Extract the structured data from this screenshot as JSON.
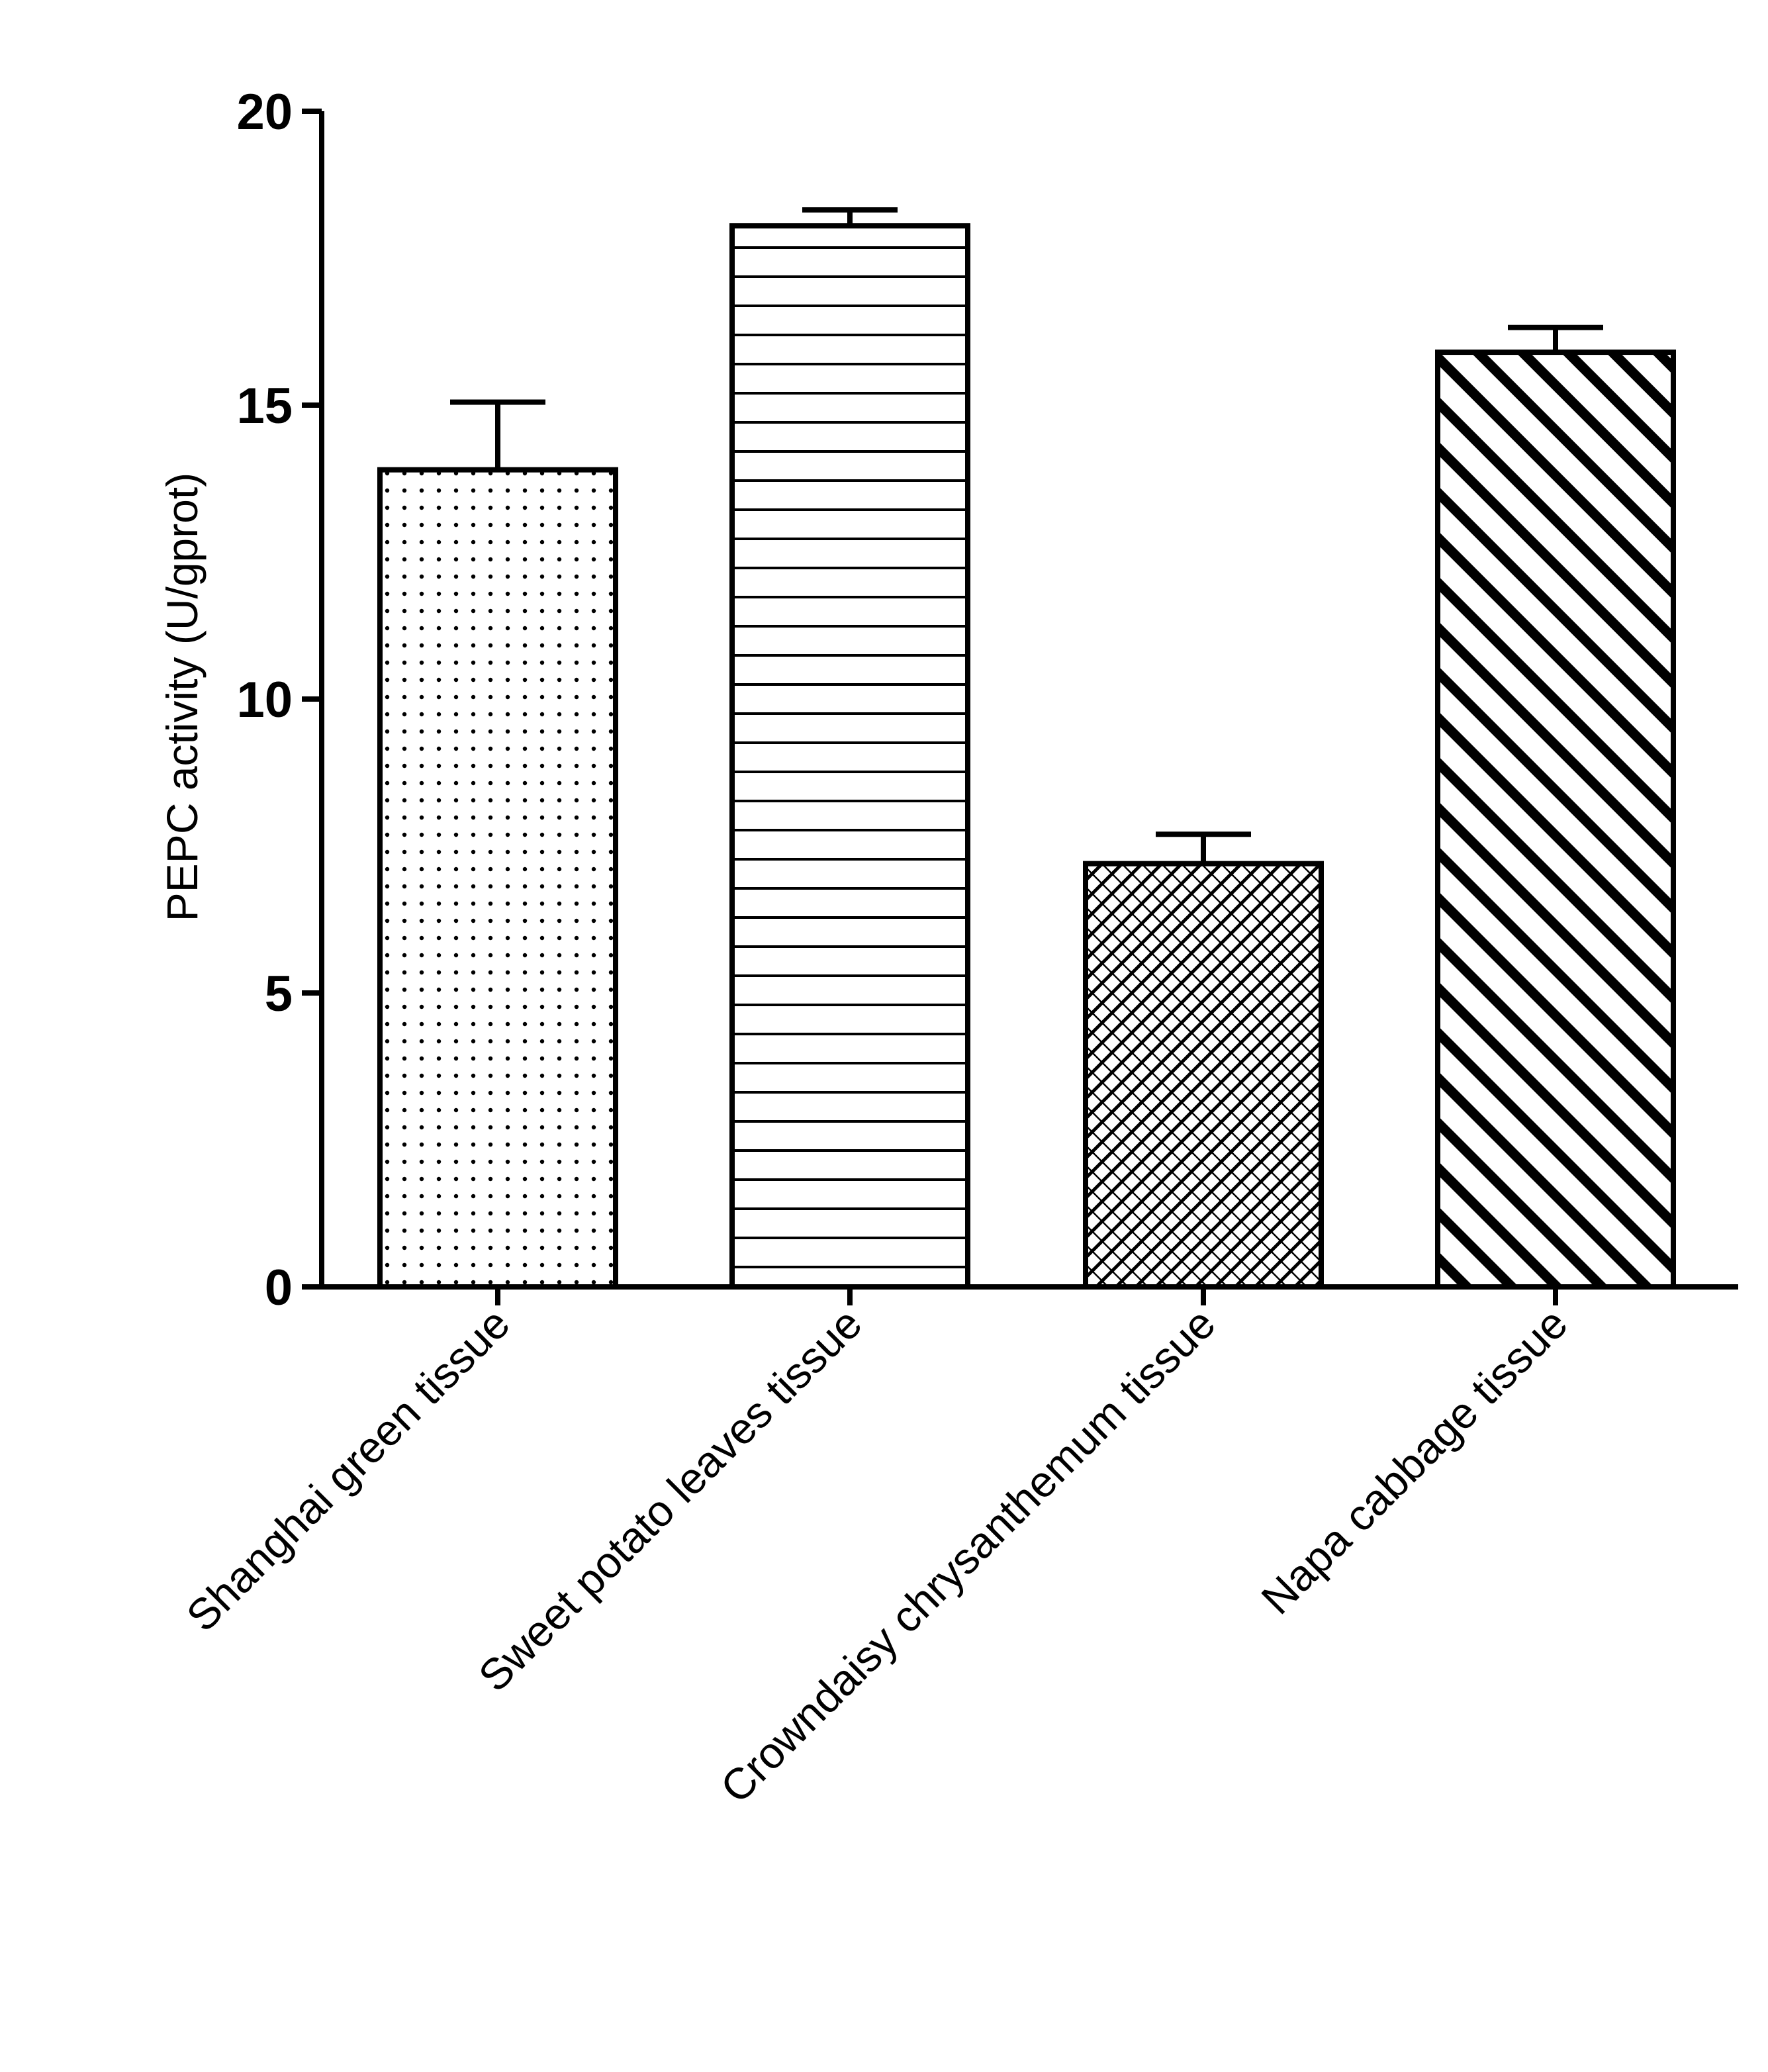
{
  "chart_data": {
    "type": "bar",
    "title": "",
    "xlabel": "",
    "ylabel": "PEPC activity (U/gprot)",
    "categories": [
      "Shanghai green tissue",
      "Sweet potato leaves tissue",
      "Crowndaisy chrysanthemum tissue",
      "Napa cabbage tissue"
    ],
    "values": [
      13.9,
      18.05,
      7.2,
      15.9
    ],
    "error": [
      1.15,
      0.27,
      0.5,
      0.42
    ],
    "patterns": [
      "dots",
      "horizontal-lines",
      "crosshatch",
      "diagonal-stripes"
    ],
    "ylim": [
      0,
      20
    ],
    "yticks": [
      0,
      5,
      10,
      15,
      20
    ],
    "grid": false,
    "legend": "none",
    "colors": {
      "bar_fill": "#ffffff",
      "bar_stroke": "#000000",
      "axis": "#000000"
    }
  }
}
